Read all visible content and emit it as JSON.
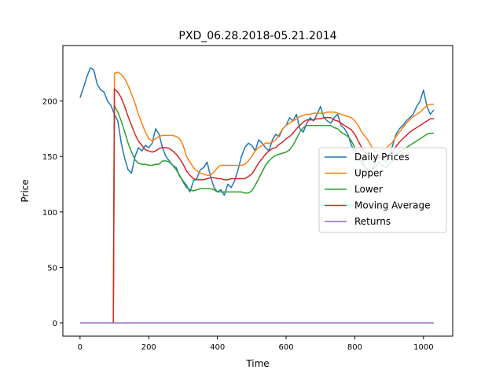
{
  "chart_data": {
    "type": "line",
    "title": "PXD_06.28.2018-05.21.2014",
    "xlabel": "Time",
    "ylabel": "Price",
    "xlim": [
      -50,
      1085
    ],
    "ylim": [
      -12,
      250
    ],
    "xticks": [
      0,
      200,
      400,
      600,
      800,
      1000
    ],
    "yticks": [
      0,
      50,
      100,
      150,
      200
    ],
    "grid": false,
    "legend_position": "center-right",
    "series": [
      {
        "name": "Daily Prices",
        "color": "#1f77b4",
        "x": [
          0,
          10,
          20,
          30,
          40,
          50,
          60,
          70,
          80,
          90,
          100,
          110,
          120,
          130,
          140,
          150,
          160,
          170,
          180,
          190,
          200,
          210,
          220,
          230,
          240,
          250,
          260,
          270,
          280,
          290,
          300,
          310,
          320,
          330,
          340,
          350,
          360,
          370,
          380,
          390,
          400,
          410,
          420,
          430,
          440,
          450,
          460,
          470,
          480,
          490,
          500,
          510,
          520,
          530,
          540,
          550,
          560,
          570,
          580,
          590,
          600,
          610,
          620,
          630,
          640,
          650,
          660,
          670,
          680,
          690,
          700,
          710,
          720,
          730,
          740,
          750,
          760,
          770,
          780,
          790,
          800,
          810,
          820,
          830,
          840,
          850,
          860,
          870,
          880,
          890,
          900,
          910,
          920,
          930,
          940,
          950,
          960,
          970,
          980,
          990,
          1000,
          1010,
          1020,
          1030
        ],
        "values": [
          203,
          212,
          222,
          230,
          228,
          215,
          210,
          208,
          200,
          196,
          188,
          182,
          162,
          148,
          138,
          135,
          150,
          158,
          155,
          160,
          158,
          162,
          175,
          170,
          158,
          150,
          146,
          142,
          140,
          132,
          128,
          124,
          118,
          128,
          130,
          138,
          140,
          145,
          132,
          122,
          118,
          120,
          115,
          125,
          122,
          128,
          138,
          150,
          158,
          162,
          160,
          155,
          165,
          162,
          158,
          155,
          165,
          170,
          168,
          175,
          178,
          185,
          182,
          188,
          175,
          172,
          180,
          185,
          182,
          188,
          195,
          185,
          182,
          180,
          185,
          188,
          178,
          175,
          170,
          160,
          155,
          150,
          148,
          140,
          135,
          138,
          145,
          152,
          148,
          145,
          150,
          160,
          170,
          175,
          178,
          182,
          185,
          188,
          195,
          200,
          210,
          195,
          188,
          192
        ]
      },
      {
        "name": "Upper",
        "color": "#ff7f0e",
        "x": [
          97,
          100,
          110,
          120,
          130,
          140,
          150,
          160,
          170,
          180,
          190,
          200,
          210,
          220,
          230,
          240,
          250,
          260,
          270,
          280,
          290,
          300,
          310,
          320,
          330,
          340,
          350,
          360,
          370,
          380,
          390,
          400,
          410,
          420,
          430,
          440,
          450,
          460,
          470,
          480,
          490,
          500,
          510,
          520,
          530,
          540,
          550,
          560,
          570,
          580,
          590,
          600,
          610,
          620,
          630,
          640,
          650,
          660,
          670,
          680,
          690,
          700,
          710,
          720,
          730,
          740,
          750,
          760,
          770,
          780,
          790,
          800,
          810,
          820,
          830,
          840,
          850,
          860,
          870,
          880,
          890,
          900,
          910,
          920,
          930,
          940,
          950,
          960,
          970,
          980,
          990,
          1000,
          1010,
          1020,
          1030
        ],
        "values": [
          0,
          225,
          226,
          224,
          220,
          214,
          206,
          198,
          188,
          180,
          172,
          166,
          164,
          166,
          168,
          169,
          169,
          169,
          169,
          168,
          166,
          160,
          150,
          145,
          140,
          137,
          135,
          134,
          133,
          133,
          136,
          140,
          142,
          142,
          142,
          142,
          142,
          142,
          142,
          143,
          146,
          150,
          155,
          158,
          160,
          162,
          162,
          163,
          165,
          170,
          175,
          178,
          180,
          182,
          184,
          186,
          187,
          188,
          188,
          189,
          189,
          189,
          189,
          190,
          190,
          190,
          189,
          188,
          187,
          186,
          185,
          182,
          178,
          172,
          168,
          164,
          158,
          154,
          155,
          156,
          157,
          160,
          163,
          168,
          172,
          176,
          180,
          183,
          186,
          188,
          190,
          193,
          196,
          197,
          197
        ]
      },
      {
        "name": "Lower",
        "color": "#2ca02c",
        "x": [
          97,
          100,
          110,
          120,
          130,
          140,
          150,
          160,
          170,
          180,
          190,
          200,
          210,
          220,
          230,
          240,
          250,
          260,
          270,
          280,
          290,
          300,
          310,
          320,
          330,
          340,
          350,
          360,
          370,
          380,
          390,
          400,
          410,
          420,
          430,
          440,
          450,
          460,
          470,
          480,
          490,
          500,
          510,
          520,
          530,
          540,
          550,
          560,
          570,
          580,
          590,
          600,
          610,
          620,
          630,
          640,
          650,
          660,
          670,
          680,
          690,
          700,
          710,
          720,
          730,
          740,
          750,
          760,
          770,
          780,
          790,
          800,
          810,
          820,
          830,
          840,
          850,
          860,
          870,
          880,
          890,
          900,
          910,
          920,
          930,
          940,
          950,
          960,
          970,
          980,
          990,
          1000,
          1010,
          1020,
          1030
        ],
        "values": [
          0,
          196,
          190,
          182,
          172,
          162,
          154,
          147,
          144,
          143,
          143,
          142,
          142,
          143,
          143,
          146,
          146,
          145,
          142,
          138,
          133,
          127,
          122,
          120,
          119,
          120,
          121,
          121,
          121,
          121,
          120,
          118,
          118,
          118,
          118,
          118,
          118,
          118,
          118,
          117,
          117,
          119,
          124,
          130,
          136,
          142,
          146,
          149,
          151,
          152,
          153,
          154,
          156,
          160,
          166,
          172,
          176,
          178,
          178,
          178,
          178,
          178,
          178,
          178,
          178,
          176,
          175,
          172,
          170,
          168,
          164,
          158,
          150,
          144,
          140,
          138,
          138,
          140,
          145,
          142,
          140,
          143,
          146,
          150,
          154,
          156,
          158,
          160,
          162,
          164,
          166,
          168,
          170,
          171,
          171
        ]
      },
      {
        "name": "Moving Average",
        "color": "#d62728",
        "x": [
          97,
          100,
          110,
          120,
          130,
          140,
          150,
          160,
          170,
          180,
          190,
          200,
          210,
          220,
          230,
          240,
          250,
          260,
          270,
          280,
          290,
          300,
          310,
          320,
          330,
          340,
          350,
          360,
          370,
          380,
          390,
          400,
          410,
          420,
          430,
          440,
          450,
          460,
          470,
          480,
          490,
          500,
          510,
          520,
          530,
          540,
          550,
          560,
          570,
          580,
          590,
          600,
          610,
          620,
          630,
          640,
          650,
          660,
          670,
          680,
          690,
          700,
          710,
          720,
          730,
          740,
          750,
          760,
          770,
          780,
          790,
          800,
          810,
          820,
          830,
          840,
          850,
          860,
          870,
          880,
          890,
          900,
          910,
          920,
          930,
          940,
          950,
          960,
          970,
          980,
          990,
          1000,
          1010,
          1020,
          1030
        ],
        "values": [
          0,
          211,
          208,
          203,
          195,
          186,
          178,
          170,
          164,
          160,
          156,
          155,
          154,
          155,
          157,
          158,
          158,
          157,
          155,
          152,
          148,
          143,
          137,
          133,
          130,
          129,
          129,
          129,
          130,
          131,
          131,
          130,
          130,
          129,
          129,
          130,
          130,
          130,
          130,
          130,
          132,
          134,
          139,
          144,
          148,
          152,
          155,
          157,
          158,
          161,
          163,
          166,
          168,
          171,
          175,
          178,
          181,
          183,
          183,
          183,
          184,
          184,
          185,
          185,
          185,
          183,
          182,
          180,
          178,
          176,
          174,
          170,
          164,
          158,
          154,
          151,
          148,
          147,
          149,
          149,
          149,
          152,
          155,
          159,
          163,
          166,
          169,
          172,
          174,
          176,
          178,
          180,
          182,
          184,
          184
        ]
      },
      {
        "name": "Returns",
        "color": "#9467bd",
        "x": [
          0,
          100,
          200,
          300,
          400,
          500,
          600,
          700,
          800,
          900,
          1030
        ],
        "values": [
          0,
          0,
          0,
          0,
          0,
          0,
          0,
          0,
          0,
          0,
          0
        ]
      }
    ]
  }
}
